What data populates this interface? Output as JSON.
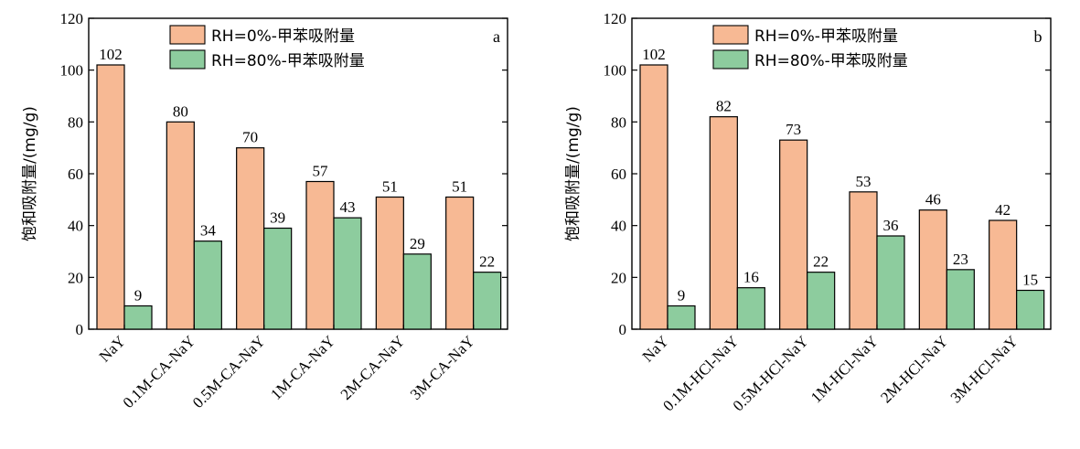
{
  "chart_data": [
    {
      "type": "bar",
      "panel_label": "a",
      "ylabel": "饱和吸附量/(mg/g)",
      "ylim": [
        0,
        120
      ],
      "yticks": [
        0,
        20,
        40,
        60,
        80,
        100,
        120
      ],
      "categories": [
        "NaY",
        "0.1M-CA-NaY",
        "0.5M-CA-NaY",
        "1M-CA-NaY",
        "2M-CA-NaY",
        "3M-CA-NaY"
      ],
      "series": [
        {
          "name": "RH=0%-甲苯吸附量",
          "color": "#f7b994",
          "values": [
            102,
            80,
            70,
            57,
            51,
            51
          ]
        },
        {
          "name": "RH=80%-甲苯吸附量",
          "color": "#8dcc9e",
          "values": [
            9,
            34,
            39,
            43,
            29,
            22
          ]
        }
      ],
      "legend_position": "top-right",
      "grid": false
    },
    {
      "type": "bar",
      "panel_label": "b",
      "ylabel": "饱和吸附量/(mg/g)",
      "ylim": [
        0,
        120
      ],
      "yticks": [
        0,
        20,
        40,
        60,
        80,
        100,
        120
      ],
      "categories": [
        "NaY",
        "0.1M-HCl-NaY",
        "0.5M-HCl-NaY",
        "1M-HCl-NaY",
        "2M-HCl-NaY",
        "3M-HCl-NaY"
      ],
      "series": [
        {
          "name": "RH=0%-甲苯吸附量",
          "color": "#f7b994",
          "values": [
            102,
            82,
            73,
            53,
            46,
            42
          ]
        },
        {
          "name": "RH=80%-甲苯吸附量",
          "color": "#8dcc9e",
          "values": [
            9,
            16,
            22,
            36,
            23,
            15
          ]
        }
      ],
      "legend_position": "top-right",
      "grid": false
    }
  ]
}
